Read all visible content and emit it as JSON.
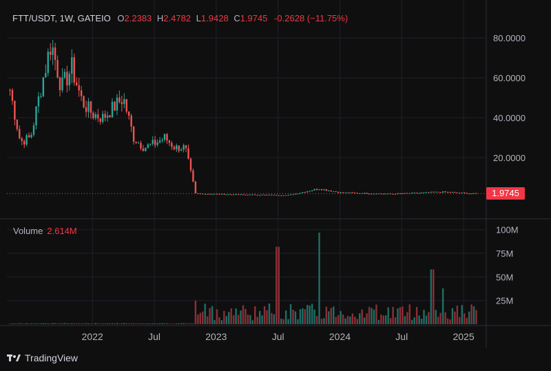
{
  "header": {
    "symbol": "FTT/USDT, 1W, GATEIO",
    "open_label": "O",
    "open": "2.2383",
    "high_label": "H",
    "high": "2.4782",
    "low_label": "L",
    "low": "1.9428",
    "close_label": "C",
    "close": "1.9745",
    "change": "-0.2628 (−11.75%)"
  },
  "volume_panel": {
    "label": "Volume",
    "value": "2.614M"
  },
  "last_price_tag": "1.9745",
  "brand": {
    "name": "TradingView"
  },
  "colors": {
    "up": "#26a69a",
    "down": "#ef5350",
    "background": "#0f0f0f",
    "grid": "#1e222d"
  },
  "chart_data": [
    {
      "type": "candlestick",
      "interval": "1W",
      "price_axis": {
        "ticks": [
          "80.0000",
          "60.0000",
          "40.0000",
          "20.0000"
        ],
        "tick_values": [
          80,
          60,
          40,
          20
        ],
        "ylim": [
          0,
          88
        ]
      },
      "time_axis": {
        "labels": [
          "2022",
          "Jul",
          "2023",
          "Jul",
          "2024",
          "Jul",
          "2025"
        ],
        "label_dates": [
          "2022-01",
          "2022-07",
          "2023-01",
          "2023-07",
          "2024-01",
          "2024-07",
          "2025-01"
        ],
        "xlim": [
          "2021-05",
          "2025-02"
        ]
      },
      "last_price": 1.9745,
      "key_points": [
        {
          "date": "2021-05",
          "close": 54
        },
        {
          "date": "2021-06",
          "close": 28
        },
        {
          "date": "2021-07",
          "close": 30
        },
        {
          "date": "2021-08",
          "close": 55
        },
        {
          "date": "2021-09",
          "close": 78
        },
        {
          "date": "2021-10",
          "close": 55
        },
        {
          "date": "2021-11",
          "close": 65
        },
        {
          "date": "2021-12",
          "close": 48
        },
        {
          "date": "2022-01",
          "close": 42
        },
        {
          "date": "2022-02",
          "close": 40
        },
        {
          "date": "2022-03",
          "close": 45
        },
        {
          "date": "2022-04",
          "close": 50
        },
        {
          "date": "2022-05",
          "close": 30
        },
        {
          "date": "2022-06",
          "close": 25
        },
        {
          "date": "2022-07",
          "close": 27
        },
        {
          "date": "2022-08",
          "close": 30
        },
        {
          "date": "2022-09",
          "close": 25
        },
        {
          "date": "2022-10",
          "close": 25
        },
        {
          "date": "2022-11",
          "close": 2
        },
        {
          "date": "2023-03",
          "close": 1.5
        },
        {
          "date": "2023-08",
          "close": 1.2
        },
        {
          "date": "2023-11",
          "close": 4.5
        },
        {
          "date": "2024-01",
          "close": 2.5
        },
        {
          "date": "2024-06",
          "close": 1.8
        },
        {
          "date": "2024-11",
          "close": 2.8
        },
        {
          "date": "2025-02",
          "close": 1.97
        }
      ]
    },
    {
      "type": "bar",
      "name": "Volume",
      "axis": {
        "ticks": [
          "100M",
          "75M",
          "50M",
          "25M"
        ],
        "tick_values": [
          100,
          75,
          50,
          25
        ],
        "ylim": [
          0,
          110
        ]
      },
      "last_value": "2.614M",
      "bars": [
        {
          "date": "2022-11",
          "value": 25
        },
        {
          "date": "2023-07",
          "value": 82
        },
        {
          "date": "2023-11",
          "value": 97
        },
        {
          "date": "2024-10",
          "value": 58
        },
        {
          "date": "2024-11",
          "value": 38
        }
      ]
    }
  ]
}
